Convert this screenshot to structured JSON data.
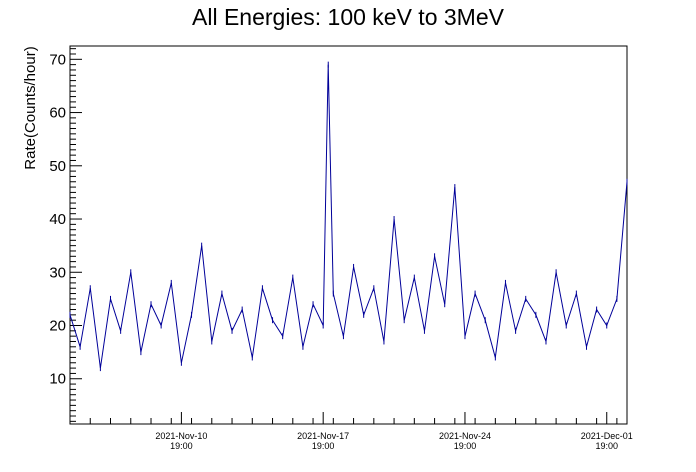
{
  "chart_data": {
    "type": "line",
    "title": "All Energies:  100 keV to 3MeV",
    "xlabel": "",
    "ylabel": "Rate(Counts/hour)",
    "x_ticks": [
      {
        "date": "2021-Nov-10",
        "time": "19:00"
      },
      {
        "date": "2021-Nov-17",
        "time": "19:00"
      },
      {
        "date": "2021-Nov-24",
        "time": "19:00"
      },
      {
        "date": "2021-Dec-01",
        "time": "19:00"
      }
    ],
    "x_range": [
      "2021-Nov-05 07:00",
      "2021-Dec-02 19:00"
    ],
    "ylim": [
      1.5,
      72.5
    ],
    "y_ticks": [
      10,
      20,
      30,
      40,
      50,
      60,
      70
    ],
    "grid": false,
    "series": [
      {
        "color": "#000099",
        "x": [
          "2021-Nov-05 07:00",
          "2021-Nov-05 19:00",
          "2021-Nov-06 07:00",
          "2021-Nov-06 19:00",
          "2021-Nov-07 07:00",
          "2021-Nov-07 19:00",
          "2021-Nov-08 07:00",
          "2021-Nov-08 19:00",
          "2021-Nov-09 07:00",
          "2021-Nov-09 19:00",
          "2021-Nov-10 07:00",
          "2021-Nov-10 19:00",
          "2021-Nov-11 07:00",
          "2021-Nov-11 19:00",
          "2021-Nov-12 07:00",
          "2021-Nov-12 19:00",
          "2021-Nov-13 07:00",
          "2021-Nov-13 19:00",
          "2021-Nov-14 07:00",
          "2021-Nov-14 19:00",
          "2021-Nov-15 07:00",
          "2021-Nov-15 19:00",
          "2021-Nov-16 07:00",
          "2021-Nov-16 19:00",
          "2021-Nov-17 07:00",
          "2021-Nov-17 19:00",
          "2021-Nov-18 01:00",
          "2021-Nov-18 07:00",
          "2021-Nov-18 19:00",
          "2021-Nov-19 07:00",
          "2021-Nov-19 19:00",
          "2021-Nov-20 07:00",
          "2021-Nov-20 19:00",
          "2021-Nov-21 07:00",
          "2021-Nov-21 19:00",
          "2021-Nov-22 07:00",
          "2021-Nov-22 19:00",
          "2021-Nov-23 07:00",
          "2021-Nov-23 19:00",
          "2021-Nov-24 07:00",
          "2021-Nov-24 19:00",
          "2021-Nov-25 07:00",
          "2021-Nov-25 19:00",
          "2021-Nov-26 07:00",
          "2021-Nov-26 19:00",
          "2021-Nov-27 07:00",
          "2021-Nov-27 19:00",
          "2021-Nov-28 07:00",
          "2021-Nov-28 19:00",
          "2021-Nov-29 07:00",
          "2021-Nov-29 19:00",
          "2021-Nov-30 07:00",
          "2021-Nov-30 19:00",
          "2021-Dec-01 07:00",
          "2021-Dec-01 19:00",
          "2021-Dec-02 07:00",
          "2021-Dec-02 19:00"
        ],
        "y": [
          22,
          16,
          27,
          12,
          25,
          19,
          30,
          15,
          24,
          20,
          28,
          13,
          22,
          35,
          17,
          26,
          19,
          23,
          14,
          27,
          21,
          18,
          29,
          16,
          24,
          20,
          69,
          26,
          18,
          31,
          22,
          27,
          17,
          40,
          21,
          29,
          19,
          33,
          24,
          46,
          18,
          26,
          21,
          14,
          28,
          19,
          25,
          22,
          17,
          30,
          20,
          26,
          16,
          23,
          20,
          25,
          47
        ]
      }
    ]
  }
}
